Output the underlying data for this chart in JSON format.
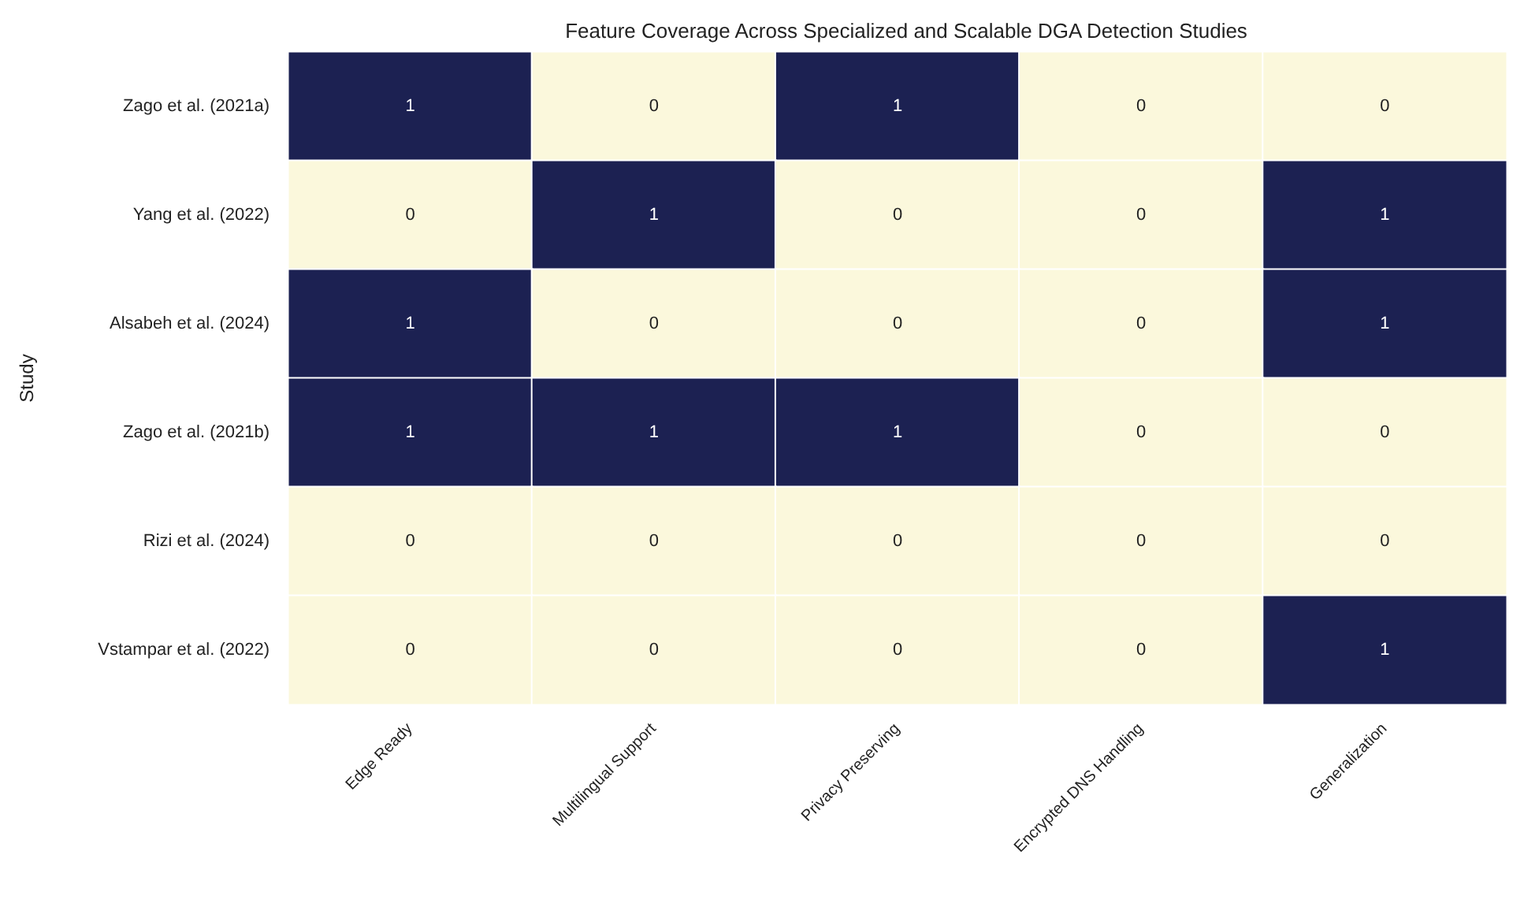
{
  "chart_data": {
    "type": "heatmap",
    "title": "Feature Coverage Across Specialized and Scalable DGA Detection Studies",
    "ylabel": "Study",
    "categories": [
      "Edge Ready",
      "Multilingual Support",
      "Privacy Preserving",
      "Encrypted DNS Handling",
      "Generalization"
    ],
    "y_categories": [
      "Zago et al. (2021a)",
      "Yang et al. (2022)",
      "Alsabeh et al. (2024)",
      "Zago et al. (2021b)",
      "Rizi et al. (2024)",
      "Vstampar et al. (2022)"
    ],
    "cells": [
      [
        1,
        0,
        1,
        0,
        0
      ],
      [
        0,
        1,
        0,
        0,
        1
      ],
      [
        1,
        0,
        0,
        0,
        1
      ],
      [
        1,
        1,
        1,
        0,
        0
      ],
      [
        0,
        0,
        0,
        0,
        0
      ],
      [
        0,
        0,
        0,
        0,
        1
      ]
    ],
    "colors": [
      "#fbf8dc",
      "#1c2152"
    ],
    "data_labels": true
  }
}
